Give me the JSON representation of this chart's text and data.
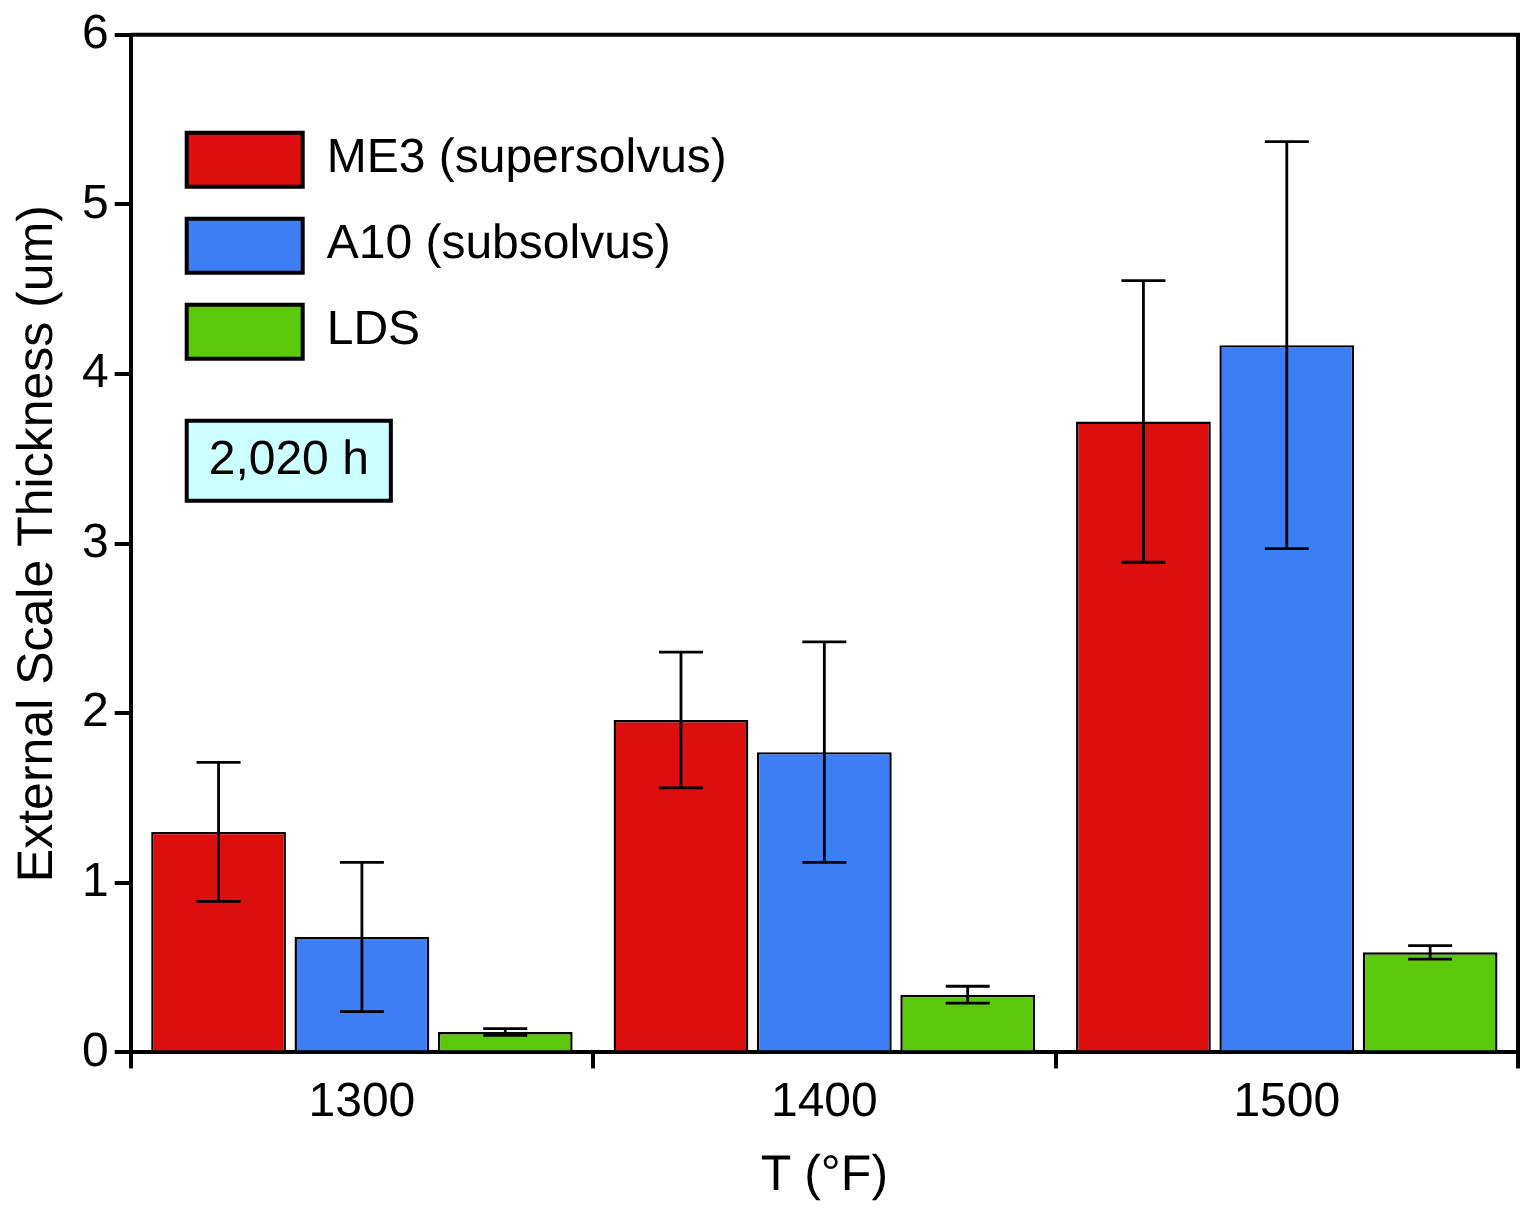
{
  "chart_data": {
    "type": "bar",
    "xlabel": "T (°F)",
    "ylabel": "External Scale Thickness (um)",
    "categories": [
      "1300",
      "1400",
      "1500"
    ],
    "series": [
      {
        "name": "ME3 (supersolvus)",
        "color": "#dd0e0e",
        "values": [
          1.3,
          1.96,
          3.72
        ],
        "errors": [
          0.41,
          0.4,
          0.83
        ]
      },
      {
        "name": "A10 (subsolvus)",
        "color": "#3d7ef4",
        "values": [
          0.68,
          1.77,
          4.17
        ],
        "errors": [
          0.44,
          0.65,
          1.2
        ]
      },
      {
        "name": "LDS",
        "color": "#5cc80c",
        "values": [
          0.12,
          0.34,
          0.59
        ],
        "errors": [
          0.02,
          0.05,
          0.04
        ]
      }
    ],
    "ylim": [
      0,
      6
    ],
    "yticks": [
      0,
      1,
      2,
      3,
      4,
      5,
      6
    ],
    "grid": false,
    "legend": "top left",
    "annotations": [
      "2,020 h"
    ]
  }
}
